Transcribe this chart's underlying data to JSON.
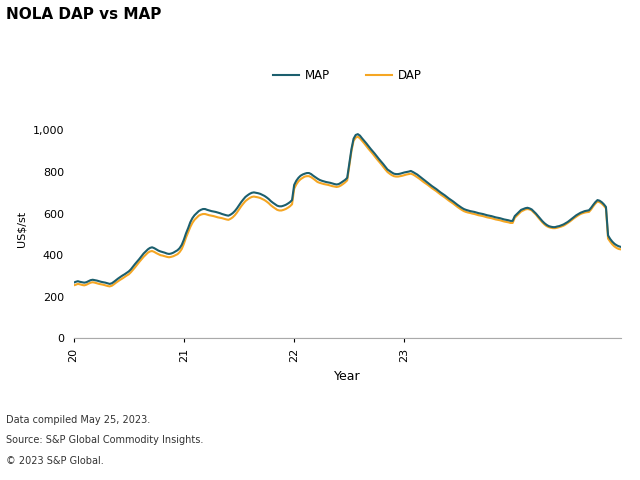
{
  "title": "NOLA DAP vs MAP",
  "xlabel": "Year",
  "ylabel": "US$/st",
  "dap_color": "#F5A623",
  "map_color": "#1C5F6E",
  "background_color": "#FFFFFF",
  "ylim": [
    0,
    1050
  ],
  "yticks": [
    0,
    200,
    400,
    600,
    800,
    1000
  ],
  "ytick_labels": [
    "0",
    "200",
    "400",
    "600",
    "800",
    "1,000"
  ],
  "xtick_positions": [
    0,
    52,
    104,
    156
  ],
  "xtick_labels": [
    "20",
    "21",
    "22",
    "23"
  ],
  "footer_lines": [
    "Data compiled May 25, 2023.",
    "Source: S&P Global Commodity Insights.",
    "© 2023 S&P Global."
  ],
  "legend_labels": [
    "DAP",
    "MAP"
  ],
  "dap_values": [
    255,
    258,
    262,
    260,
    257,
    255,
    258,
    263,
    268,
    270,
    268,
    265,
    262,
    260,
    258,
    255,
    252,
    250,
    253,
    260,
    268,
    275,
    282,
    288,
    295,
    302,
    308,
    318,
    330,
    342,
    355,
    368,
    380,
    392,
    402,
    412,
    418,
    420,
    416,
    410,
    405,
    400,
    398,
    395,
    392,
    390,
    392,
    395,
    400,
    405,
    415,
    430,
    455,
    485,
    510,
    535,
    555,
    570,
    580,
    590,
    595,
    598,
    598,
    595,
    592,
    590,
    588,
    585,
    582,
    580,
    578,
    575,
    572,
    570,
    575,
    582,
    592,
    605,
    620,
    635,
    648,
    660,
    668,
    675,
    680,
    682,
    680,
    678,
    675,
    670,
    665,
    658,
    650,
    640,
    632,
    625,
    618,
    615,
    615,
    618,
    622,
    628,
    635,
    645,
    720,
    740,
    755,
    765,
    772,
    778,
    780,
    780,
    775,
    768,
    760,
    752,
    748,
    745,
    742,
    740,
    738,
    735,
    732,
    730,
    728,
    730,
    735,
    742,
    750,
    760,
    830,
    900,
    950,
    965,
    970,
    962,
    950,
    938,
    925,
    912,
    900,
    888,
    875,
    862,
    850,
    838,
    825,
    812,
    800,
    792,
    785,
    780,
    778,
    778,
    780,
    782,
    785,
    788,
    790,
    792,
    788,
    782,
    775,
    768,
    760,
    752,
    745,
    738,
    730,
    722,
    715,
    708,
    700,
    692,
    685,
    678,
    670,
    662,
    655,
    648,
    640,
    632,
    625,
    618,
    612,
    608,
    605,
    603,
    600,
    598,
    595,
    592,
    590,
    588,
    585,
    582,
    580,
    578,
    575,
    572,
    570,
    568,
    565,
    562,
    560,
    558,
    555,
    555,
    580,
    590,
    600,
    610,
    615,
    620,
    622,
    620,
    615,
    605,
    595,
    582,
    570,
    558,
    548,
    540,
    535,
    532,
    530,
    530,
    532,
    535,
    538,
    542,
    548,
    555,
    562,
    570,
    578,
    585,
    592,
    598,
    602,
    605,
    607,
    608,
    620,
    635,
    648,
    658,
    655,
    648,
    638,
    625,
    480,
    465,
    452,
    442,
    435,
    430,
    428
  ],
  "map_values": [
    268,
    272,
    275,
    272,
    270,
    268,
    270,
    275,
    280,
    282,
    280,
    278,
    275,
    272,
    270,
    268,
    265,
    262,
    265,
    272,
    280,
    288,
    295,
    302,
    308,
    315,
    322,
    332,
    345,
    358,
    370,
    382,
    395,
    408,
    418,
    428,
    435,
    438,
    434,
    428,
    422,
    418,
    415,
    412,
    408,
    406,
    408,
    412,
    418,
    424,
    434,
    450,
    475,
    505,
    530,
    558,
    578,
    592,
    602,
    612,
    618,
    622,
    622,
    618,
    615,
    612,
    610,
    608,
    605,
    602,
    598,
    595,
    592,
    590,
    595,
    602,
    612,
    625,
    640,
    655,
    668,
    680,
    688,
    695,
    700,
    702,
    700,
    698,
    695,
    690,
    685,
    678,
    670,
    660,
    652,
    645,
    638,
    635,
    635,
    638,
    642,
    648,
    655,
    665,
    738,
    758,
    772,
    782,
    788,
    792,
    795,
    795,
    790,
    782,
    775,
    768,
    762,
    758,
    755,
    752,
    750,
    748,
    745,
    742,
    740,
    742,
    748,
    755,
    762,
    772,
    840,
    910,
    960,
    978,
    982,
    975,
    962,
    950,
    938,
    925,
    912,
    900,
    888,
    875,
    862,
    850,
    838,
    825,
    812,
    805,
    798,
    792,
    790,
    790,
    792,
    795,
    798,
    800,
    802,
    805,
    800,
    794,
    788,
    780,
    772,
    764,
    756,
    748,
    740,
    732,
    725,
    718,
    710,
    702,
    695,
    688,
    680,
    672,
    665,
    658,
    650,
    642,
    635,
    628,
    622,
    618,
    615,
    612,
    610,
    608,
    605,
    602,
    600,
    598,
    595,
    592,
    590,
    588,
    585,
    582,
    580,
    578,
    575,
    572,
    570,
    568,
    565,
    565,
    588,
    598,
    608,
    618,
    622,
    626,
    628,
    625,
    620,
    610,
    600,
    588,
    576,
    564,
    554,
    546,
    540,
    537,
    535,
    535,
    538,
    540,
    544,
    548,
    554,
    560,
    568,
    576,
    584,
    592,
    598,
    604,
    608,
    612,
    614,
    616,
    628,
    642,
    655,
    665,
    662,
    655,
    645,
    632,
    495,
    478,
    465,
    455,
    448,
    443,
    440
  ]
}
